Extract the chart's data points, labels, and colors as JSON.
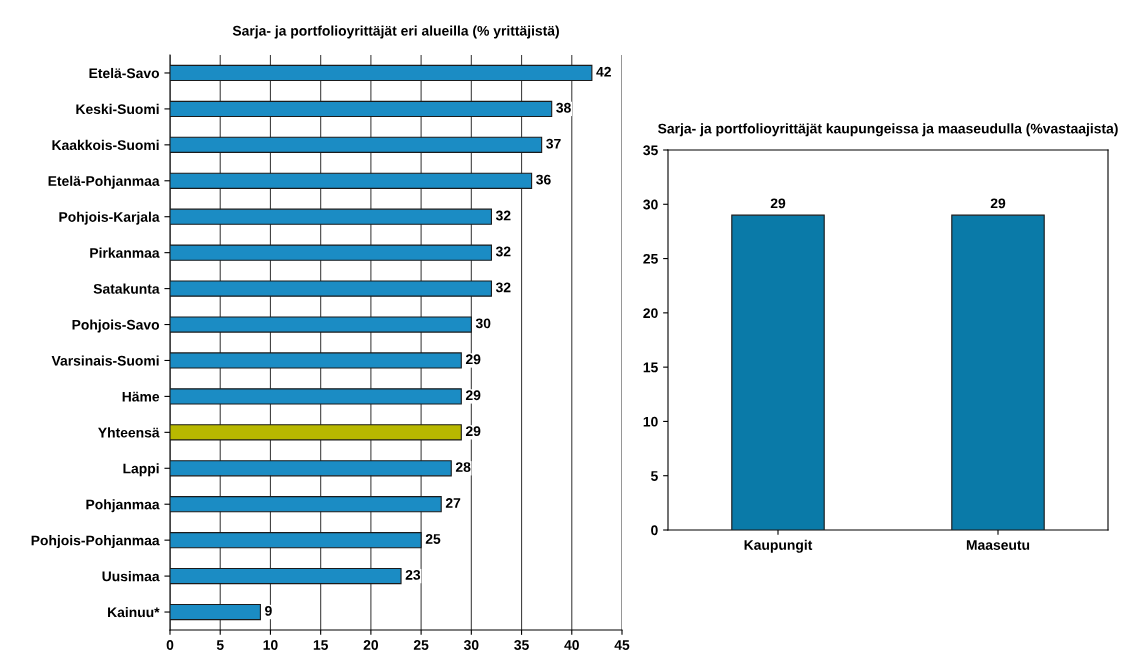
{
  "chart_data": [
    {
      "type": "bar",
      "orientation": "horizontal",
      "title": "Sarja- ja portfolioyrittäjät eri alueilla (% yrittäjistä)",
      "categories": [
        "Etelä-Savo",
        "Keski-Suomi",
        "Kaakkois-Suomi",
        "Etelä-Pohjanmaa",
        "Pohjois-Karjala",
        "Pirkanmaa",
        "Satakunta",
        "Pohjois-Savo",
        "Varsinais-Suomi",
        "Häme",
        "Yhteensä",
        "Lappi",
        "Pohjanmaa",
        "Pohjois-Pohjanmaa",
        "Uusimaa",
        "Kainuu*"
      ],
      "values": [
        42,
        38,
        37,
        36,
        32,
        32,
        32,
        30,
        29,
        29,
        29,
        28,
        27,
        25,
        23,
        9
      ],
      "colors": [
        "#1b8cc4",
        "#1b8cc4",
        "#1b8cc4",
        "#1b8cc4",
        "#1b8cc4",
        "#1b8cc4",
        "#1b8cc4",
        "#1b8cc4",
        "#1b8cc4",
        "#1b8cc4",
        "#b8b800",
        "#1b8cc4",
        "#1b8cc4",
        "#1b8cc4",
        "#1b8cc4",
        "#1b8cc4"
      ],
      "xlim": [
        0,
        45
      ],
      "xticks": [
        0,
        5,
        10,
        15,
        20,
        25,
        30,
        35,
        40,
        45
      ],
      "grid": "x",
      "data_labels": true
    },
    {
      "type": "bar",
      "title": "Sarja- ja portfolioyrittäjät kaupungeissa ja maaseudulla (%vastaajista)",
      "categories": [
        "Kaupungit",
        "Maaseutu"
      ],
      "values": [
        29,
        29
      ],
      "colors": [
        "#0a7aa8",
        "#0a7aa8"
      ],
      "ylim": [
        0,
        35
      ],
      "yticks": [
        0,
        5,
        10,
        15,
        20,
        25,
        30,
        35
      ],
      "data_labels": true
    }
  ]
}
